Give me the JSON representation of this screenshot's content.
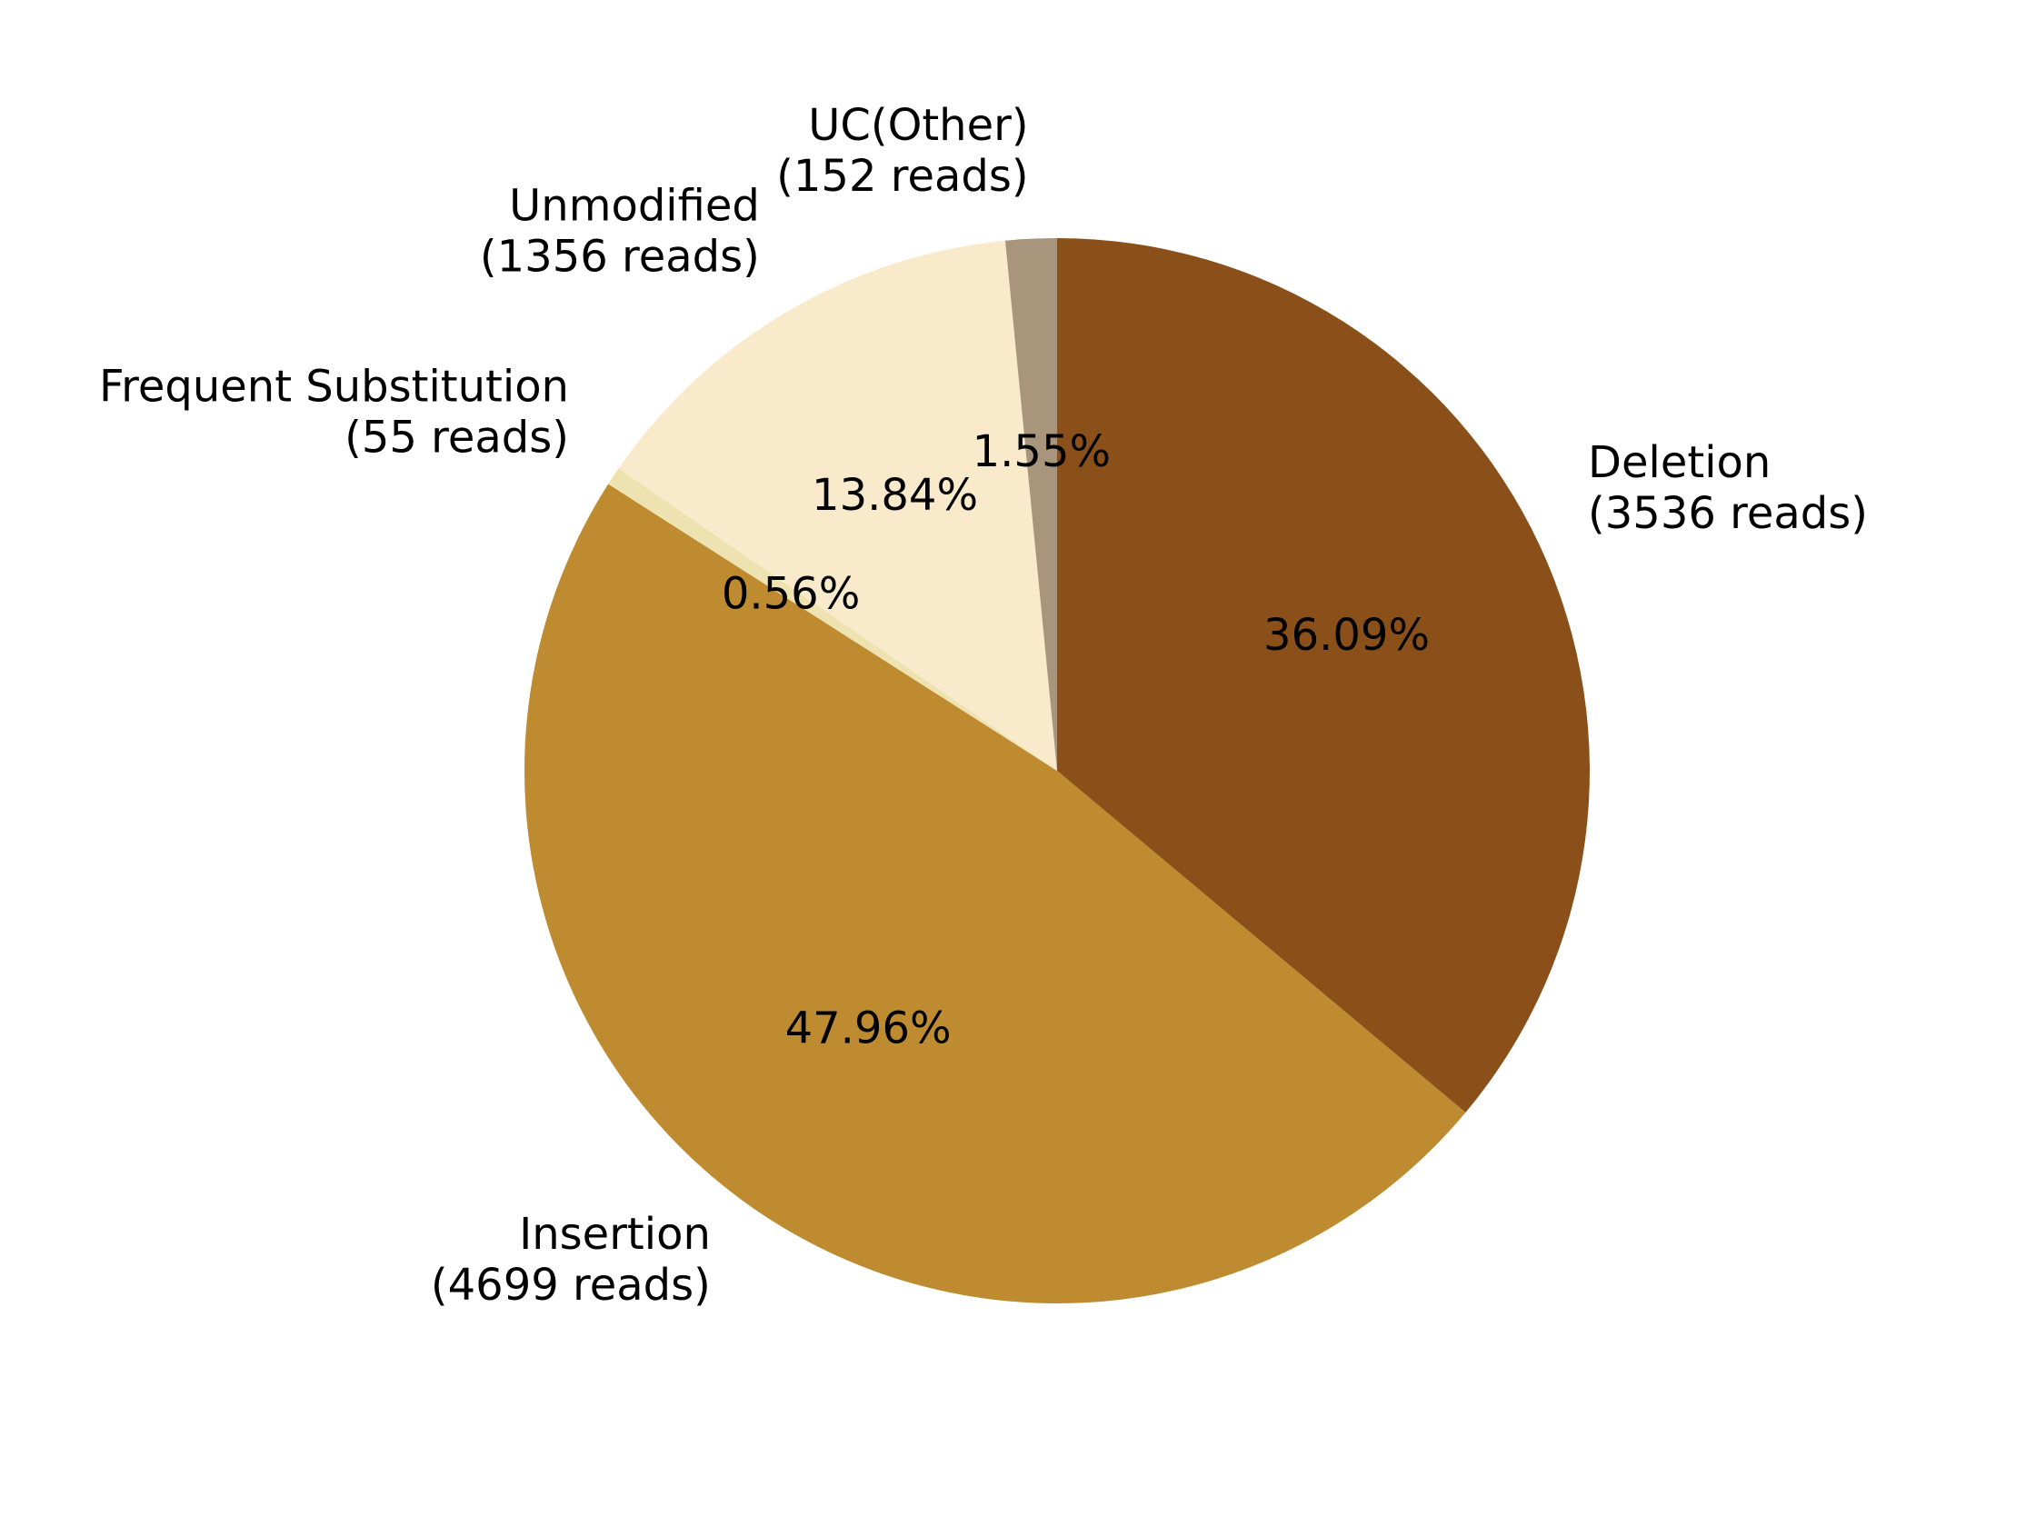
{
  "chart_data": {
    "type": "pie",
    "title": "",
    "start_angle_deg": 90,
    "direction": "clockwise",
    "slices": [
      {
        "label": "Deletion",
        "reads_label": "(3536 reads)",
        "reads": 3536,
        "pct_label": "36.09%",
        "color": "#8B4F1A"
      },
      {
        "label": "Insertion",
        "reads_label": "(4699 reads)",
        "reads": 4699,
        "pct_label": "47.96%",
        "color": "#BF8B30"
      },
      {
        "label": "Frequent Substitution",
        "reads_label": "(55 reads)",
        "reads": 55,
        "pct_label": "0.56%",
        "color": "#EEE3B0"
      },
      {
        "label": "Unmodified",
        "reads_label": "(1356 reads)",
        "reads": 1356,
        "pct_label": "13.84%",
        "color": "#F8EACB"
      },
      {
        "label": "UC(Other)",
        "reads_label": "(152 reads)",
        "reads": 152,
        "pct_label": "1.55%",
        "color": "#A8957C"
      }
    ]
  }
}
